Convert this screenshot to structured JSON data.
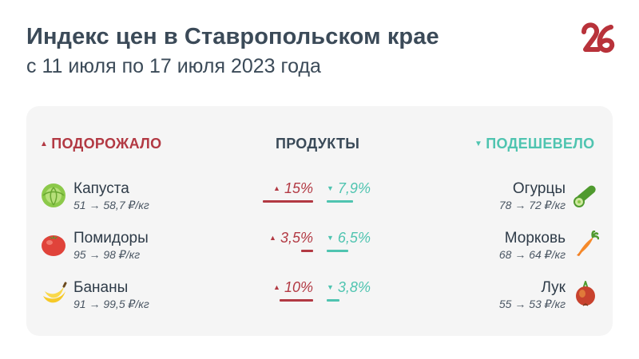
{
  "header": {
    "title": "Индекс цен в Ставропольском крае",
    "subtitle": "с 11 июля по 17 июля 2023 года",
    "logo_text": "26"
  },
  "columns": {
    "up": "ПОДОРОЖАЛО",
    "middle": "ПРОДУКТЫ",
    "down": "ПОДЕШЕВЕЛО"
  },
  "colors": {
    "up": "#b23943",
    "down": "#4fc4b0",
    "text": "#2e3b48",
    "card": "#f5f5f5"
  },
  "rows": [
    {
      "up": {
        "name": "Капуста",
        "price": "51 → 58,7 ₽/кг",
        "pct": "15%",
        "icon": "cabbage-icon",
        "value": 15
      },
      "down": {
        "name": "Огурцы",
        "price": "78 → 72 ₽/кг",
        "pct": "7,9%",
        "icon": "cucumber-icon",
        "value": 7.9
      }
    },
    {
      "up": {
        "name": "Помидоры",
        "price": "95 → 98 ₽/кг",
        "pct": "3,5%",
        "icon": "tomato-icon",
        "value": 3.5
      },
      "down": {
        "name": "Морковь",
        "price": "68 → 64 ₽/кг",
        "pct": "6,5%",
        "icon": "carrot-icon",
        "value": 6.5
      }
    },
    {
      "up": {
        "name": "Бананы",
        "price": "91 → 99,5 ₽/кг",
        "pct": "10%",
        "icon": "bananas-icon",
        "value": 10
      },
      "down": {
        "name": "Лук",
        "price": "55 → 53 ₽/кг",
        "pct": "3,8%",
        "icon": "onion-icon",
        "value": 3.8
      }
    }
  ]
}
